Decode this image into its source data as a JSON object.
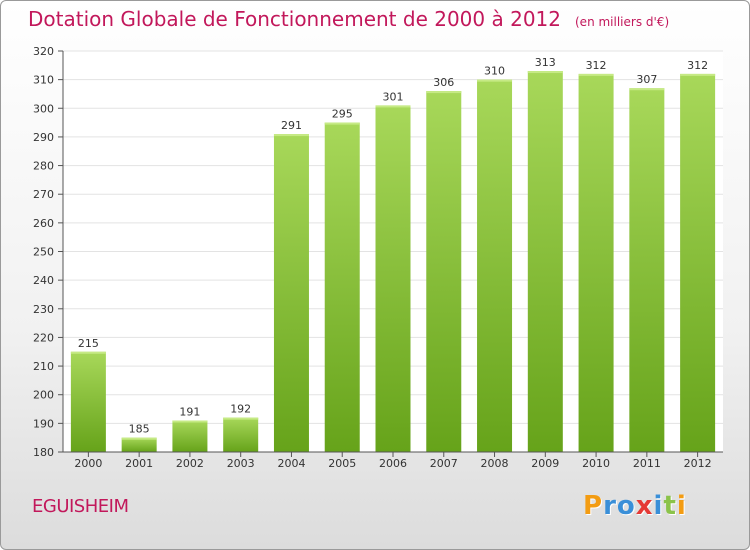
{
  "header": {
    "title": "Dotation Globale de Fonctionnement de 2000 à 2012",
    "subtitle": "(en milliers d'€)"
  },
  "commune": "EGUISHEIM",
  "logo": {
    "text": "Proxiti",
    "letter_colors": [
      "#f39c12",
      "#3a8fd8",
      "#3a8fd8",
      "#e53935",
      "#3a8fd8",
      "#8bc34a",
      "#f39c12"
    ]
  },
  "colors": {
    "bar_light": "#a8d85a",
    "bar_dark": "#66a31a",
    "grid": "#e3e3e3",
    "axis": "#555555",
    "title": "#c2185b"
  },
  "chart_data": {
    "type": "bar",
    "categories": [
      "2000",
      "2001",
      "2002",
      "2003",
      "2004",
      "2005",
      "2006",
      "2007",
      "2008",
      "2009",
      "2010",
      "2011",
      "2012"
    ],
    "values": [
      215,
      185,
      191,
      192,
      291,
      295,
      301,
      306,
      310,
      313,
      312,
      307,
      312
    ],
    "ylim": [
      180,
      320
    ],
    "yticks": [
      180,
      190,
      200,
      210,
      220,
      230,
      240,
      250,
      260,
      270,
      280,
      290,
      300,
      310,
      320
    ],
    "grid": true,
    "data_labels": true
  }
}
